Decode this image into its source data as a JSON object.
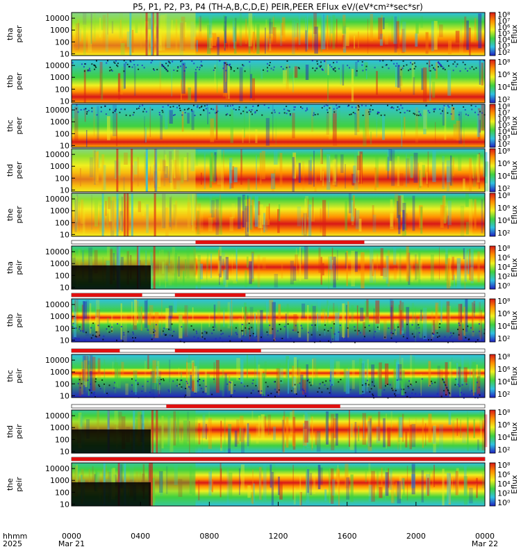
{
  "title": "P5, P1, P2, P3, P4 (TH-A,B,C,D,E) PEIR,PEER EFlux eV/(eV*cm²*sec*sr)",
  "colorbar_label": "Eflux",
  "time_axis": {
    "row1_label": "hhmm",
    "row2_label": "2025",
    "ticks": [
      {
        "t": 0,
        "top": "0000",
        "bottom": "Mar 21"
      },
      {
        "t": 4,
        "top": "0400",
        "bottom": ""
      },
      {
        "t": 8,
        "top": "0800",
        "bottom": ""
      },
      {
        "t": 12,
        "top": "1200",
        "bottom": ""
      },
      {
        "t": 16,
        "top": "1600",
        "bottom": ""
      },
      {
        "t": 20,
        "top": "2000",
        "bottom": ""
      },
      {
        "t": 24,
        "top": "0000",
        "bottom": "Mar 22"
      }
    ]
  },
  "panel_colors": {
    "low": "#2020c0",
    "cyan": "#30c0e0",
    "green": "#40d040",
    "yellow": "#f0f020",
    "orange": "#ff9000",
    "red": "#d81818",
    "black": "#000000"
  },
  "mode_bar_color": "#e01010",
  "chart_data": [
    {
      "type": "heatmap",
      "probe": "tha",
      "species": "peer",
      "y_label_1": "tha",
      "y_label_2": "peer",
      "ylim_eV": [
        7,
        30000
      ],
      "yscale": "log",
      "y_ticks": [
        "10000",
        "1000",
        "100",
        "10"
      ],
      "cbar_ticks": [
        "10⁸",
        "10⁷",
        "10⁶",
        "10⁵",
        "10⁴",
        "10³",
        "10²"
      ],
      "profile": "spiky",
      "red_center_log": 1.7,
      "red_width": 0.9
    },
    {
      "type": "heatmap",
      "probe": "thb",
      "species": "peer",
      "y_label_1": "thb",
      "y_label_2": "peer",
      "ylim_eV": [
        7,
        30000
      ],
      "yscale": "log",
      "y_ticks": [
        "10000",
        "1000",
        "100",
        "10"
      ],
      "cbar_ticks": [
        "10⁸",
        "10⁶",
        "10⁴",
        "10²"
      ],
      "profile": "steady",
      "red_center_log": 1.35,
      "red_width": 0.75
    },
    {
      "type": "heatmap",
      "probe": "thc",
      "species": "peer",
      "y_label_1": "thc",
      "y_label_2": "peer",
      "ylim_eV": [
        7,
        30000
      ],
      "yscale": "log",
      "y_ticks": [
        "10000",
        "1000",
        "100",
        "10"
      ],
      "cbar_ticks": [
        "10⁸",
        "10⁷",
        "10⁶",
        "10⁵",
        "10⁴",
        "10³",
        "10²"
      ],
      "profile": "steady",
      "red_center_log": 1.3,
      "red_width": 0.6
    },
    {
      "type": "heatmap",
      "probe": "thd",
      "species": "peer",
      "y_label_1": "thd",
      "y_label_2": "peer",
      "ylim_eV": [
        7,
        30000
      ],
      "yscale": "log",
      "y_ticks": [
        "10000",
        "1000",
        "100",
        "10"
      ],
      "cbar_ticks": [
        "10⁸",
        "10⁶",
        "10⁴",
        "10²"
      ],
      "profile": "spiky",
      "red_center_log": 1.9,
      "red_width": 0.9
    },
    {
      "type": "heatmap",
      "probe": "the",
      "species": "peer",
      "y_label_1": "the",
      "y_label_2": "peer",
      "ylim_eV": [
        7,
        30000
      ],
      "yscale": "log",
      "y_ticks": [
        "10000",
        "1000",
        "100",
        "10"
      ],
      "cbar_ticks": [
        "10⁸",
        "10⁶",
        "10⁴",
        "10²"
      ],
      "profile": "spiky",
      "red_center_log": 1.9,
      "red_width": 0.95
    },
    {
      "type": "heatmap",
      "probe": "tha",
      "species": "peir",
      "y_label_1": "tha",
      "y_label_2": "peir",
      "ylim_eV": [
        7,
        30000
      ],
      "yscale": "log",
      "y_ticks": [
        "10000",
        "1000",
        "100",
        "10"
      ],
      "cbar_ticks": [
        "10⁸",
        "10⁶",
        "10⁴",
        "10²",
        "10⁰"
      ],
      "profile": "ion",
      "red_center_log": 2.7,
      "red_width": 0.6
    },
    {
      "type": "heatmap",
      "probe": "thb",
      "species": "peir",
      "y_label_1": "thb",
      "y_label_2": "peir",
      "ylim_eV": [
        7,
        30000
      ],
      "yscale": "log",
      "y_ticks": [
        "10000",
        "1000",
        "100",
        "10"
      ],
      "cbar_ticks": [
        "10⁸",
        "10⁶",
        "10⁴",
        "10²"
      ],
      "profile": "band",
      "red_center_log": 2.9,
      "red_width": 0.25
    },
    {
      "type": "heatmap",
      "probe": "thc",
      "species": "peir",
      "y_label_1": "thc",
      "y_label_2": "peir",
      "ylim_eV": [
        7,
        30000
      ],
      "yscale": "log",
      "y_ticks": [
        "10000",
        "1000",
        "100",
        "10"
      ],
      "cbar_ticks": [
        "10⁸",
        "10⁶",
        "10⁴",
        "10²"
      ],
      "profile": "band",
      "red_center_log": 2.9,
      "red_width": 0.2
    },
    {
      "type": "heatmap",
      "probe": "thd",
      "species": "peir",
      "y_label_1": "thd",
      "y_label_2": "peir",
      "ylim_eV": [
        7,
        30000
      ],
      "yscale": "log",
      "y_ticks": [
        "10000",
        "1000",
        "100",
        "10"
      ],
      "cbar_ticks": [
        "10⁸",
        "10⁶",
        "10⁴",
        "10²"
      ],
      "profile": "ion",
      "red_center_log": 2.8,
      "red_width": 0.55
    },
    {
      "type": "heatmap",
      "probe": "the",
      "species": "peir",
      "y_label_1": "the",
      "y_label_2": "peir",
      "ylim_eV": [
        7,
        30000
      ],
      "yscale": "log",
      "y_ticks": [
        "10000",
        "1000",
        "100",
        "10"
      ],
      "cbar_ticks": [
        "10⁸",
        "10⁶",
        "10⁴",
        "10²",
        "10⁰"
      ],
      "profile": "ion",
      "red_center_log": 2.8,
      "red_width": 0.5
    }
  ],
  "mode_bars": [
    {
      "above_panel": 5,
      "segments": [
        [
          7.2,
          17.0
        ]
      ]
    },
    {
      "above_panel": 6,
      "segments": [
        [
          0.0,
          4.1
        ],
        [
          6.0,
          10.1
        ]
      ]
    },
    {
      "above_panel": 7,
      "segments": [
        [
          0.0,
          2.8
        ],
        [
          6.0,
          11.0
        ]
      ]
    },
    {
      "above_panel": 8,
      "segments": [
        [
          5.5,
          15.6
        ]
      ]
    },
    {
      "above_panel": 9,
      "segments": [
        [
          0.0,
          24.0
        ]
      ]
    }
  ]
}
